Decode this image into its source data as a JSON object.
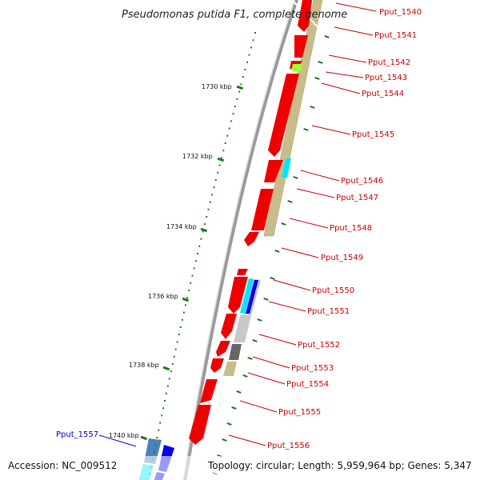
{
  "title": "Pseudomonas putida F1, complete genome",
  "footer": {
    "accession": "Accession: NC_009512",
    "topology": "Topology: circular; Length: 5,959,964 bp; Genes: 5,347"
  },
  "kbp_labels": [
    "1730 kbp",
    "1732 kbp",
    "1734 kbp",
    "1736 kbp",
    "1738 kbp",
    "1740 kbp"
  ],
  "gene_labels": [
    {
      "id": "Pput_1540",
      "color": "#cc0000"
    },
    {
      "id": "Pput_1541",
      "color": "#cc0000"
    },
    {
      "id": "Pput_1542",
      "color": "#cc0000"
    },
    {
      "id": "Pput_1543",
      "color": "#cc0000"
    },
    {
      "id": "Pput_1544",
      "color": "#cc0000"
    },
    {
      "id": "Pput_1545",
      "color": "#cc0000"
    },
    {
      "id": "Pput_1546",
      "color": "#cc0000"
    },
    {
      "id": "Pput_1547",
      "color": "#cc0000"
    },
    {
      "id": "Pput_1548",
      "color": "#cc0000"
    },
    {
      "id": "Pput_1549",
      "color": "#cc0000"
    },
    {
      "id": "Pput_1550",
      "color": "#cc0000"
    },
    {
      "id": "Pput_1551",
      "color": "#cc0000"
    },
    {
      "id": "Pput_1552",
      "color": "#cc0000"
    },
    {
      "id": "Pput_1553",
      "color": "#cc0000"
    },
    {
      "id": "Pput_1554",
      "color": "#cc0000"
    },
    {
      "id": "Pput_1555",
      "color": "#cc0000"
    },
    {
      "id": "Pput_1556",
      "color": "#cc0000"
    },
    {
      "id": "Pput_1557",
      "color": "#0000cc"
    }
  ],
  "colors": {
    "cds": "#ee0000",
    "gene_track": "#c8bd8a",
    "backbone": "#888888",
    "tick": "#1a7a1a",
    "cyan": "#00e5ff",
    "lime": "#99ff33",
    "blue": "#0000ee"
  }
}
